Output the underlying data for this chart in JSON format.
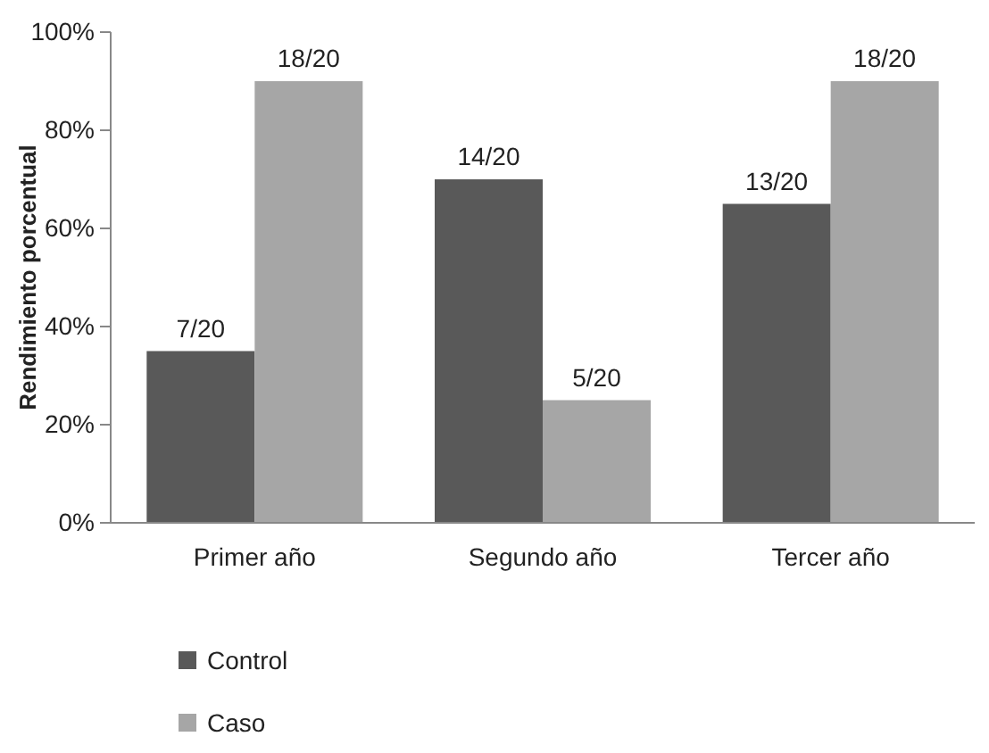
{
  "chart_data": {
    "type": "bar",
    "ylabel": "Rendimiento porcentual",
    "categories": [
      "Primer año",
      "Segundo año",
      "Tercer año"
    ],
    "series": [
      {
        "name": "Control",
        "color": "#595959",
        "values": [
          35,
          70,
          65
        ],
        "value_labels": [
          "7/20",
          "14/20",
          "13/20"
        ]
      },
      {
        "name": "Caso",
        "color": "#a6a6a6",
        "values": [
          90,
          25,
          90
        ],
        "value_labels": [
          "18/20",
          "5/20",
          "18/20"
        ]
      }
    ],
    "ylim": [
      0,
      100
    ],
    "yticks": [
      {
        "value": 0,
        "label": "0%"
      },
      {
        "value": 20,
        "label": "20%"
      },
      {
        "value": 40,
        "label": "40%"
      },
      {
        "value": 60,
        "label": "60%"
      },
      {
        "value": 80,
        "label": "80%"
      },
      {
        "value": 100,
        "label": "100%"
      }
    ],
    "grid": false,
    "legend": "bottom left"
  }
}
